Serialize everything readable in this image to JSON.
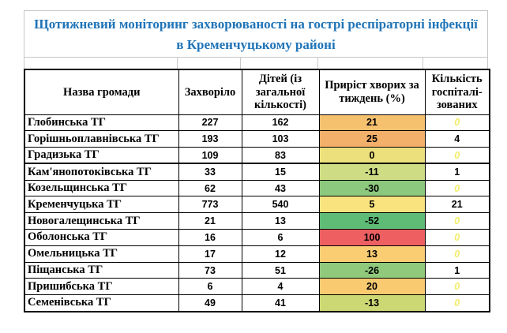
{
  "title": {
    "line1": "Щотижневий моніторинг захворюваності на гострі респіраторні інфекції",
    "line2": "в Кременчуцькому районі"
  },
  "colors": {
    "title_text": "#1F74B8",
    "table_border": "#000000",
    "light_border": "#C9C9C9",
    "zero_value_text": "#F2EC6A",
    "growth_red": "#EE5F62",
    "growth_green": "#5FBC77",
    "growth_yellow": "#F9E37E"
  },
  "table": {
    "columns": [
      "Назва громади",
      "Захворіло",
      "Дітей (із загальної кількості)",
      "Приріст хворих за тиждень (%)",
      "Кількість госпіталі-зованих"
    ],
    "rows": [
      {
        "name": "Глобинська ТГ",
        "sick": 227,
        "children": 162,
        "growth": 21,
        "growth_color": "#F6C16F",
        "hospitalized": 0
      },
      {
        "name": "Горішньоплавнівська ТГ",
        "sick": 193,
        "children": 103,
        "growth": 25,
        "growth_color": "#F3B06A",
        "hospitalized": 4
      },
      {
        "name": "Градизька ТГ",
        "sick": 109,
        "children": 83,
        "growth": 0,
        "growth_color": "#ECE07D",
        "hospitalized": 0,
        "thick_bottom": true
      },
      {
        "name": "Кам'янопотоківська ТГ",
        "sick": 33,
        "children": 15,
        "growth": -11,
        "growth_color": "#CEDD84",
        "hospitalized": 1
      },
      {
        "name": "Козельщинська ТГ",
        "sick": 62,
        "children": 43,
        "growth": -30,
        "growth_color": "#8CC87D",
        "hospitalized": 0
      },
      {
        "name": "Кременчуцька ТГ",
        "sick": 773,
        "children": 540,
        "growth": 5,
        "growth_color": "#F9E37E",
        "hospitalized": 21
      },
      {
        "name": "Новогалещинська ТГ",
        "sick": 21,
        "children": 13,
        "growth": -52,
        "growth_color": "#5FBC77",
        "hospitalized": 0
      },
      {
        "name": "Оболонська ТГ",
        "sick": 16,
        "children": 6,
        "growth": 100,
        "growth_color": "#EE5F62",
        "hospitalized": 0
      },
      {
        "name": "Омельницька ТГ",
        "sick": 17,
        "children": 12,
        "growth": 13,
        "growth_color": "#FACD73",
        "hospitalized": 0
      },
      {
        "name": "Піщанська ТГ",
        "sick": 73,
        "children": 51,
        "growth": -26,
        "growth_color": "#90C97C",
        "hospitalized": 1
      },
      {
        "name": "Пришибська ТГ",
        "sick": 6,
        "children": 4,
        "growth": 20,
        "growth_color": "#F9CA70",
        "hospitalized": 0
      },
      {
        "name": "Семенівська ТГ",
        "sick": 49,
        "children": 41,
        "growth": -13,
        "growth_color": "#CBD873",
        "hospitalized": 0
      }
    ]
  }
}
